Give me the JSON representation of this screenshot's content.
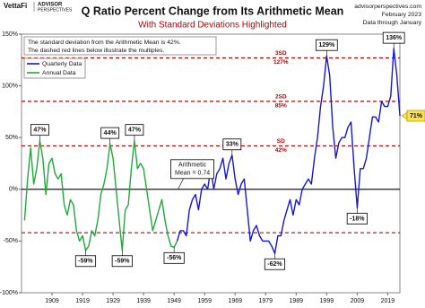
{
  "header": {
    "logo": "VettaFi",
    "brand_line1": "ADVISOR",
    "brand_line2": "PERSPECTIVES",
    "source": [
      "advisorperspectives.com",
      "February 2023",
      "Data through January"
    ]
  },
  "chart_data": {
    "type": "line",
    "title": "Q Ratio Percent Change from Its Arithmetic Mean",
    "subtitle": "With Standard Deviations Highlighted",
    "note": [
      "The standard deviation from the Arithmetic Mean is 42%.",
      "The dashed red lines below illustrate the multiples."
    ],
    "mean_label": [
      "Arithmetic",
      "Mean = 0.74"
    ],
    "xlim": [
      1899,
      2023
    ],
    "xticks": [
      1909,
      1919,
      1929,
      1939,
      1949,
      1959,
      1969,
      1979,
      1989,
      1999,
      2009,
      2019
    ],
    "ylim": [
      -100,
      150
    ],
    "yticks": [
      {
        "value": -100,
        "label": "-100%"
      },
      {
        "value": -50,
        "label": "-50%"
      },
      {
        "value": 0,
        "label": "0%"
      },
      {
        "value": 50,
        "label": "50%"
      },
      {
        "value": 100,
        "label": "100%"
      },
      {
        "value": 150,
        "label": "150%"
      }
    ],
    "grid": false,
    "legend": "upper-left",
    "series": [
      {
        "name": "Quarterly Data",
        "color": "#1616d9",
        "x": [
          1950,
          1951,
          1952,
          1953,
          1954,
          1955,
          1956,
          1957,
          1958,
          1959,
          1960,
          1961,
          1962,
          1963,
          1964,
          1965,
          1966,
          1967,
          1968,
          1969,
          1970,
          1971,
          1972,
          1973,
          1974,
          1975,
          1976,
          1977,
          1978,
          1979,
          1980,
          1981,
          1982,
          1983,
          1984,
          1985,
          1986,
          1987,
          1988,
          1989,
          1990,
          1991,
          1992,
          1993,
          1994,
          1995,
          1996,
          1997,
          1998,
          1999,
          2000,
          2001,
          2002,
          2003,
          2004,
          2005,
          2006,
          2007,
          2008,
          2009,
          2010,
          2011,
          2012,
          2013,
          2014,
          2015,
          2016,
          2017,
          2018,
          2019,
          2020,
          2021,
          2022,
          2023
        ],
        "values": [
          -50,
          -40,
          -40,
          -45,
          -20,
          -10,
          -5,
          -20,
          0,
          5,
          0,
          20,
          0,
          15,
          20,
          30,
          10,
          25,
          33,
          10,
          -5,
          5,
          10,
          -20,
          -50,
          -40,
          -35,
          -45,
          -50,
          -50,
          -50,
          -55,
          -62,
          -45,
          -45,
          -30,
          -20,
          -10,
          -25,
          -10,
          -15,
          0,
          5,
          10,
          5,
          30,
          50,
          80,
          100,
          129,
          110,
          60,
          30,
          45,
          50,
          50,
          60,
          65,
          20,
          -18,
          20,
          20,
          30,
          50,
          70,
          70,
          65,
          85,
          80,
          80,
          90,
          136,
          110,
          71
        ]
      },
      {
        "name": "Annual Data",
        "color": "#1faa3c",
        "x": [
          1900,
          1901,
          1902,
          1903,
          1904,
          1905,
          1906,
          1907,
          1908,
          1909,
          1910,
          1911,
          1912,
          1913,
          1914,
          1915,
          1916,
          1917,
          1918,
          1919,
          1920,
          1921,
          1922,
          1923,
          1924,
          1925,
          1926,
          1927,
          1928,
          1929,
          1930,
          1931,
          1932,
          1933,
          1934,
          1935,
          1936,
          1937,
          1938,
          1939,
          1940,
          1941,
          1942,
          1943,
          1944,
          1945,
          1946,
          1947,
          1948,
          1949,
          1950
        ],
        "values": [
          -30,
          10,
          40,
          5,
          20,
          47,
          30,
          -5,
          25,
          30,
          15,
          10,
          15,
          -15,
          -25,
          -10,
          -15,
          -40,
          -50,
          -45,
          -59,
          -55,
          -40,
          -45,
          -30,
          -5,
          5,
          20,
          44,
          30,
          0,
          -30,
          -59,
          -20,
          -15,
          20,
          47,
          20,
          25,
          20,
          0,
          -20,
          -40,
          -30,
          -20,
          -10,
          -30,
          -45,
          -55,
          -56,
          -50
        ]
      }
    ],
    "reference_lines": [
      {
        "name": "3SD",
        "value": 127,
        "label": "127%"
      },
      {
        "name": "2SD",
        "value": 85,
        "label": "85%"
      },
      {
        "name": "SD",
        "value": 42,
        "label": "42%"
      },
      {
        "value": -42
      }
    ],
    "reference_color": "#c00000",
    "annotations": [
      {
        "label": "47%",
        "x": 1905,
        "y": 47
      },
      {
        "label": "-59%",
        "x": 1920,
        "y": -59
      },
      {
        "label": "44%",
        "x": 1928,
        "y": 44
      },
      {
        "label": "-59%",
        "x": 1932,
        "y": -59
      },
      {
        "label": "47%",
        "x": 1936,
        "y": 47
      },
      {
        "label": "-56%",
        "x": 1949,
        "y": -56
      },
      {
        "label": "33%",
        "x": 1968,
        "y": 33
      },
      {
        "label": "-62%",
        "x": 1982,
        "y": -62
      },
      {
        "label": "129%",
        "x": 1999,
        "y": 129
      },
      {
        "label": "-18%",
        "x": 2009,
        "y": -18
      },
      {
        "label": "136%",
        "x": 2021,
        "y": 136
      }
    ],
    "latest": {
      "label": "71%",
      "x": 2023,
      "y": 71
    }
  }
}
